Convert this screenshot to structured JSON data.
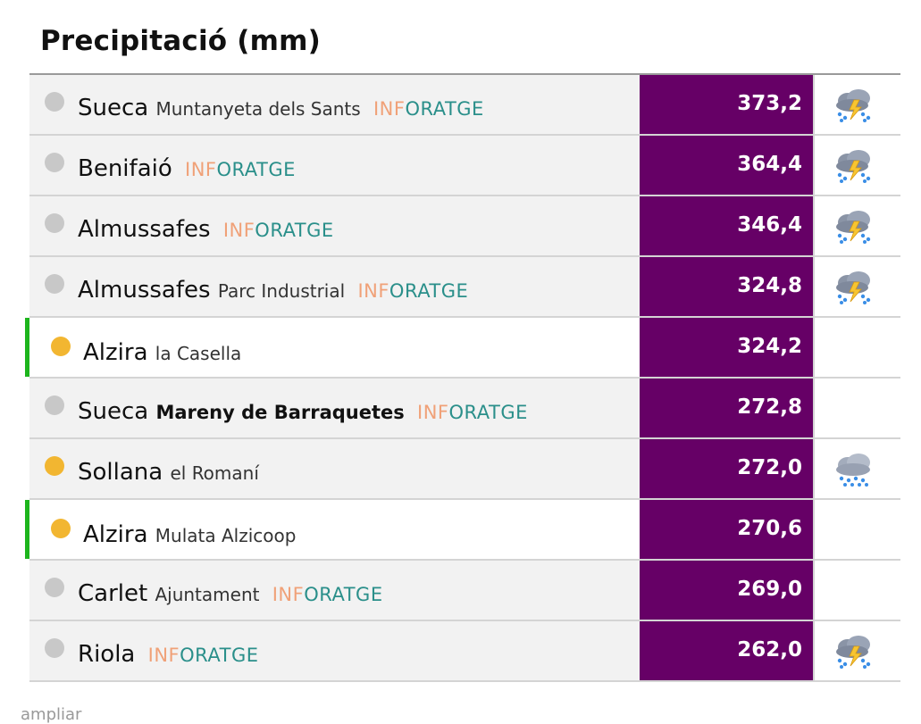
{
  "title": "Precipitació (mm)",
  "footer": "ampliar",
  "badge": {
    "part1": "INF",
    "part2": "ORATGE"
  },
  "colors": {
    "value_bg": "#660066",
    "marker": "#1db51d",
    "sun": "#f2b631",
    "badge_orange": "#f0a178",
    "badge_teal": "#2a8f8a"
  },
  "rows": [
    {
      "city": "Sueca",
      "place": "Muntanyeta dels Sants",
      "badge": true,
      "value": "373,2",
      "dot": "grey",
      "highlight": false,
      "weather_icon": "storm-cloud-icon"
    },
    {
      "city": "Benifaió",
      "place": "",
      "badge": true,
      "value": "364,4",
      "dot": "grey",
      "highlight": false,
      "weather_icon": "storm-cloud-icon"
    },
    {
      "city": "Almussafes",
      "place": "",
      "badge": true,
      "value": "346,4",
      "dot": "grey",
      "highlight": false,
      "weather_icon": "storm-cloud-icon"
    },
    {
      "city": "Almussafes",
      "place": "Parc Industrial",
      "badge": true,
      "value": "324,8",
      "dot": "grey",
      "highlight": false,
      "weather_icon": "storm-cloud-icon"
    },
    {
      "city": "Alzira",
      "place": "la Casella",
      "badge": false,
      "value": "324,2",
      "dot": "sun",
      "highlight": true,
      "weather_icon": ""
    },
    {
      "city": "Sueca",
      "place": "Mareny de Barraquetes",
      "place_bold": true,
      "badge": true,
      "value": "272,8",
      "dot": "grey",
      "highlight": false,
      "weather_icon": ""
    },
    {
      "city": "Sollana",
      "place": "el Romaní",
      "badge": false,
      "value": "272,0",
      "dot": "sun",
      "highlight": false,
      "weather_icon": "rain-cloud-icon"
    },
    {
      "city": "Alzira",
      "place": "Mulata Alzicoop",
      "badge": false,
      "value": "270,6",
      "dot": "sun",
      "highlight": true,
      "weather_icon": ""
    },
    {
      "city": "Carlet",
      "place": "Ajuntament",
      "badge": true,
      "value": "269,0",
      "dot": "grey",
      "highlight": false,
      "weather_icon": ""
    },
    {
      "city": "Riola",
      "place": "",
      "badge": true,
      "value": "262,0",
      "dot": "grey",
      "highlight": false,
      "weather_icon": "storm-cloud-icon"
    }
  ]
}
